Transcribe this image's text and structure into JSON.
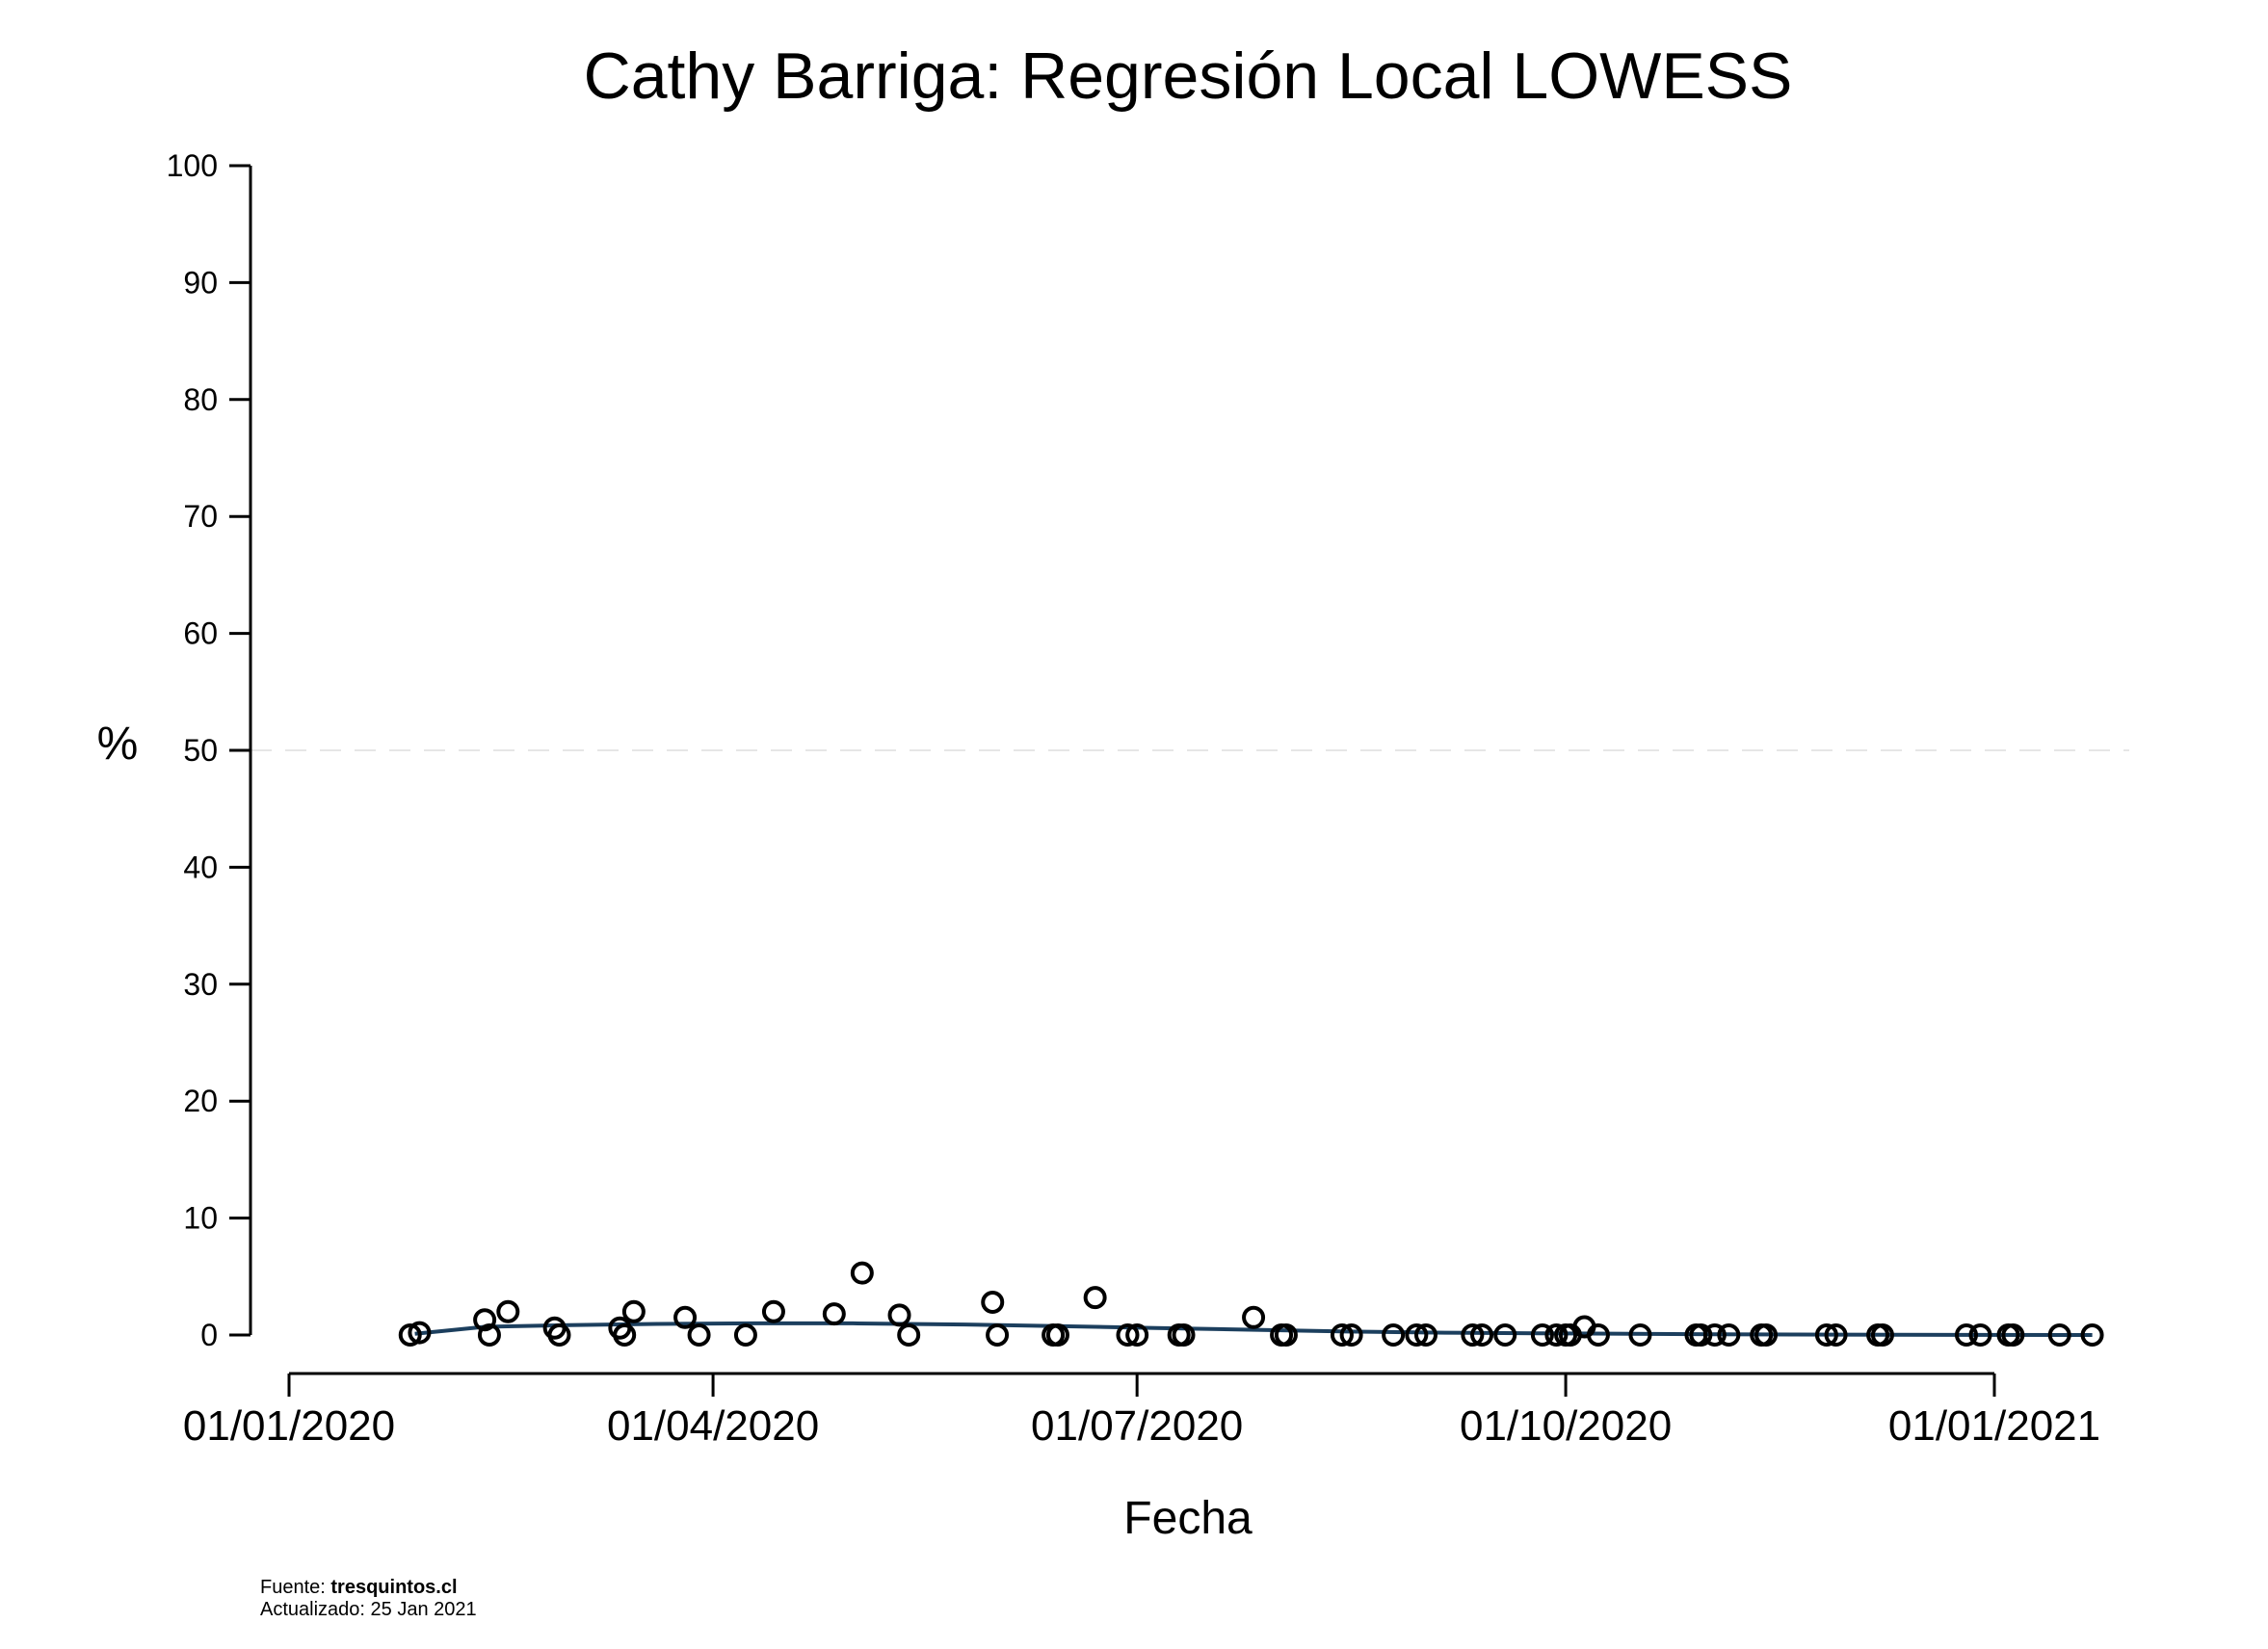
{
  "title": "Cathy Barriga: Regresión Local LOWESS",
  "footer": {
    "source_prefix": "Fuente: ",
    "source_site": "tresquintos.cl",
    "updated": "Actualizado: 25 Jan 2021"
  },
  "colors": {
    "points": "#000000",
    "lowess": "#1c3f5e",
    "reference": "#dddddd",
    "axis": "#000000"
  },
  "chart_data": {
    "type": "scatter",
    "title": "Cathy Barriga: Regresión Local LOWESS",
    "xlabel": "Fecha",
    "ylabel": "%",
    "ylim": [
      0,
      100
    ],
    "xlim": [
      "2020-01-01",
      "2021-01-26"
    ],
    "y_ticks": [
      "0",
      "10",
      "20",
      "30",
      "40",
      "50",
      "60",
      "70",
      "80",
      "90",
      "100"
    ],
    "x_ticks": [
      {
        "date": "2020-01-01",
        "label": "01/01/2020"
      },
      {
        "date": "2020-04-01",
        "label": "01/04/2020"
      },
      {
        "date": "2020-07-01",
        "label": "01/07/2020"
      },
      {
        "date": "2020-10-01",
        "label": "01/10/2020"
      },
      {
        "date": "2021-01-01",
        "label": "01/01/2021"
      }
    ],
    "reference_line": 50,
    "grid": false,
    "series": [
      {
        "type": "points",
        "points": [
          {
            "x": "2020-01-27",
            "y": 0
          },
          {
            "x": "2020-01-29",
            "y": 0.2
          },
          {
            "x": "2020-02-12",
            "y": 1.3
          },
          {
            "x": "2020-02-13",
            "y": 0
          },
          {
            "x": "2020-02-17",
            "y": 2
          },
          {
            "x": "2020-02-27",
            "y": 0.6
          },
          {
            "x": "2020-02-28",
            "y": 0
          },
          {
            "x": "2020-03-12",
            "y": 0.6
          },
          {
            "x": "2020-03-13",
            "y": 0
          },
          {
            "x": "2020-03-15",
            "y": 2
          },
          {
            "x": "2020-03-26",
            "y": 1.5
          },
          {
            "x": "2020-03-29",
            "y": 0
          },
          {
            "x": "2020-04-08",
            "y": 0
          },
          {
            "x": "2020-04-14",
            "y": 2
          },
          {
            "x": "2020-04-27",
            "y": 1.8
          },
          {
            "x": "2020-05-03",
            "y": 5.3
          },
          {
            "x": "2020-05-11",
            "y": 1.7
          },
          {
            "x": "2020-05-13",
            "y": 0
          },
          {
            "x": "2020-05-31",
            "y": 2.8
          },
          {
            "x": "2020-06-01",
            "y": 0
          },
          {
            "x": "2020-06-13",
            "y": 0
          },
          {
            "x": "2020-06-14",
            "y": 0
          },
          {
            "x": "2020-06-22",
            "y": 3.2
          },
          {
            "x": "2020-06-29",
            "y": 0
          },
          {
            "x": "2020-07-01",
            "y": 0
          },
          {
            "x": "2020-07-10",
            "y": 0
          },
          {
            "x": "2020-07-11",
            "y": 0
          },
          {
            "x": "2020-07-26",
            "y": 1.5
          },
          {
            "x": "2020-08-01",
            "y": 0
          },
          {
            "x": "2020-08-02",
            "y": 0
          },
          {
            "x": "2020-08-14",
            "y": 0
          },
          {
            "x": "2020-08-16",
            "y": 0
          },
          {
            "x": "2020-08-25",
            "y": 0
          },
          {
            "x": "2020-08-30",
            "y": 0
          },
          {
            "x": "2020-09-01",
            "y": 0
          },
          {
            "x": "2020-09-11",
            "y": 0
          },
          {
            "x": "2020-09-13",
            "y": 0
          },
          {
            "x": "2020-09-18",
            "y": 0
          },
          {
            "x": "2020-09-26",
            "y": 0
          },
          {
            "x": "2020-09-29",
            "y": 0
          },
          {
            "x": "2020-10-01",
            "y": 0
          },
          {
            "x": "2020-10-02",
            "y": 0
          },
          {
            "x": "2020-10-05",
            "y": 0.7
          },
          {
            "x": "2020-10-08",
            "y": 0
          },
          {
            "x": "2020-10-17",
            "y": 0
          },
          {
            "x": "2020-10-29",
            "y": 0
          },
          {
            "x": "2020-10-30",
            "y": 0
          },
          {
            "x": "2020-11-02",
            "y": 0
          },
          {
            "x": "2020-11-05",
            "y": 0
          },
          {
            "x": "2020-11-12",
            "y": 0
          },
          {
            "x": "2020-11-13",
            "y": 0
          },
          {
            "x": "2020-11-26",
            "y": 0
          },
          {
            "x": "2020-11-28",
            "y": 0
          },
          {
            "x": "2020-12-07",
            "y": 0
          },
          {
            "x": "2020-12-08",
            "y": 0
          },
          {
            "x": "2020-12-26",
            "y": 0
          },
          {
            "x": "2020-12-29",
            "y": 0
          },
          {
            "x": "2021-01-04",
            "y": 0
          },
          {
            "x": "2021-01-05",
            "y": 0
          },
          {
            "x": "2021-01-15",
            "y": 0
          },
          {
            "x": "2021-01-22",
            "y": 0
          }
        ]
      },
      {
        "type": "lowess_line",
        "points": [
          {
            "x": "2020-01-28",
            "y": 0.1
          },
          {
            "x": "2020-02-12",
            "y": 0.7
          },
          {
            "x": "2020-03-01",
            "y": 0.85
          },
          {
            "x": "2020-03-20",
            "y": 0.95
          },
          {
            "x": "2020-04-10",
            "y": 1.0
          },
          {
            "x": "2020-05-01",
            "y": 1.0
          },
          {
            "x": "2020-05-25",
            "y": 0.9
          },
          {
            "x": "2020-06-15",
            "y": 0.75
          },
          {
            "x": "2020-07-05",
            "y": 0.6
          },
          {
            "x": "2020-07-25",
            "y": 0.45
          },
          {
            "x": "2020-08-15",
            "y": 0.3
          },
          {
            "x": "2020-09-05",
            "y": 0.2
          },
          {
            "x": "2020-09-25",
            "y": 0.15
          },
          {
            "x": "2020-10-15",
            "y": 0.1
          },
          {
            "x": "2020-11-10",
            "y": 0.05
          },
          {
            "x": "2020-12-10",
            "y": 0.02
          },
          {
            "x": "2021-01-22",
            "y": 0.0
          }
        ]
      }
    ]
  }
}
